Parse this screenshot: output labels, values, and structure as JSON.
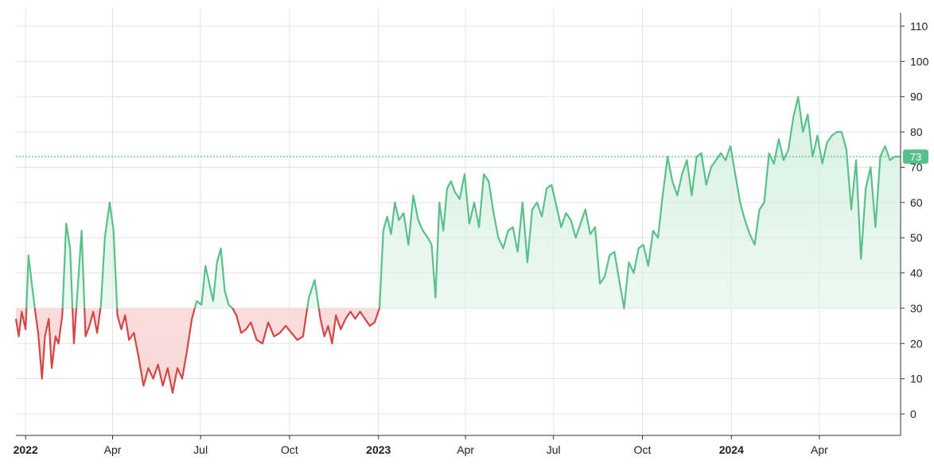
{
  "chart_data": {
    "type": "area",
    "threshold": 30,
    "colors": {
      "above": "#58c08a",
      "below": "#d64545",
      "above_fill_top": "#d8f1e3",
      "below_fill": "#f8d6d6",
      "grid": "#e3e3e3",
      "axis": "#333333",
      "current": "#58c08a"
    },
    "current_value": 73,
    "current_label": "73",
    "ylim": [
      -6,
      112
    ],
    "y_ticks": [
      0,
      10,
      20,
      30,
      40,
      50,
      60,
      70,
      80,
      90,
      100,
      110
    ],
    "y_tick_labels": [
      "0",
      "10",
      "20",
      "30",
      "40",
      "50",
      "60",
      "70",
      "80",
      "90",
      "100",
      "110"
    ],
    "xlim": [
      "2021-12-22",
      "2024-06-24"
    ],
    "x_ticks": [
      {
        "date": "2022-01-01",
        "label": "2022",
        "year": true
      },
      {
        "date": "2022-04-01",
        "label": "Apr",
        "year": false
      },
      {
        "date": "2022-07-01",
        "label": "Jul",
        "year": false
      },
      {
        "date": "2022-10-01",
        "label": "Oct",
        "year": false
      },
      {
        "date": "2023-01-01",
        "label": "2023",
        "year": true
      },
      {
        "date": "2023-04-01",
        "label": "Apr",
        "year": false
      },
      {
        "date": "2023-07-01",
        "label": "Jul",
        "year": false
      },
      {
        "date": "2023-10-01",
        "label": "Oct",
        "year": false
      },
      {
        "date": "2024-01-01",
        "label": "2024",
        "year": true
      },
      {
        "date": "2024-04-01",
        "label": "Apr",
        "year": false
      }
    ],
    "series": [
      {
        "x": [
          "2021-12-22",
          "2021-12-25",
          "2021-12-28",
          "2022-01-01",
          "2022-01-04",
          "2022-01-07",
          "2022-01-11",
          "2022-01-14",
          "2022-01-18",
          "2022-01-21",
          "2022-01-25",
          "2022-01-28",
          "2022-02-01",
          "2022-02-04",
          "2022-02-08",
          "2022-02-12",
          "2022-02-16",
          "2022-02-20",
          "2022-02-24",
          "2022-02-28",
          "2022-03-04",
          "2022-03-08",
          "2022-03-12",
          "2022-03-16",
          "2022-03-20",
          "2022-03-24",
          "2022-03-29",
          "2022-04-02",
          "2022-04-06",
          "2022-04-10",
          "2022-04-14",
          "2022-04-18",
          "2022-04-23",
          "2022-04-28",
          "2022-05-03",
          "2022-05-08",
          "2022-05-13",
          "2022-05-18",
          "2022-05-23",
          "2022-05-28",
          "2022-06-02",
          "2022-06-07",
          "2022-06-12",
          "2022-06-17",
          "2022-06-22",
          "2022-06-27",
          "2022-07-02",
          "2022-07-06",
          "2022-07-10",
          "2022-07-14",
          "2022-07-18",
          "2022-07-22",
          "2022-07-26",
          "2022-07-30",
          "2022-08-03",
          "2022-08-07",
          "2022-08-12",
          "2022-08-17",
          "2022-08-22",
          "2022-08-28",
          "2022-09-03",
          "2022-09-09",
          "2022-09-15",
          "2022-09-21",
          "2022-09-27",
          "2022-10-03",
          "2022-10-09",
          "2022-10-15",
          "2022-10-21",
          "2022-10-27",
          "2022-11-02",
          "2022-11-06",
          "2022-11-10",
          "2022-11-14",
          "2022-11-18",
          "2022-11-23",
          "2022-11-28",
          "2022-12-03",
          "2022-12-08",
          "2022-12-13",
          "2022-12-18",
          "2022-12-23",
          "2022-12-28",
          "2023-01-02",
          "2023-01-06",
          "2023-01-10",
          "2023-01-14",
          "2023-01-18",
          "2023-01-22",
          "2023-01-27",
          "2023-02-01",
          "2023-02-06",
          "2023-02-11",
          "2023-02-16",
          "2023-02-21",
          "2023-02-25",
          "2023-03-01",
          "2023-03-05",
          "2023-03-09",
          "2023-03-13",
          "2023-03-17",
          "2023-03-21",
          "2023-03-26",
          "2023-03-31",
          "2023-04-05",
          "2023-04-10",
          "2023-04-15",
          "2023-04-20",
          "2023-04-25",
          "2023-04-30",
          "2023-05-05",
          "2023-05-10",
          "2023-05-15",
          "2023-05-20",
          "2023-05-25",
          "2023-05-30",
          "2023-06-04",
          "2023-06-09",
          "2023-06-14",
          "2023-06-19",
          "2023-06-24",
          "2023-06-29",
          "2023-07-04",
          "2023-07-09",
          "2023-07-14",
          "2023-07-19",
          "2023-07-24",
          "2023-07-29",
          "2023-08-03",
          "2023-08-08",
          "2023-08-13",
          "2023-08-18",
          "2023-08-23",
          "2023-08-28",
          "2023-09-02",
          "2023-09-07",
          "2023-09-12",
          "2023-09-17",
          "2023-09-22",
          "2023-09-27",
          "2023-10-02",
          "2023-10-07",
          "2023-10-12",
          "2023-10-17",
          "2023-10-22",
          "2023-10-27",
          "2023-11-01",
          "2023-11-06",
          "2023-11-11",
          "2023-11-16",
          "2023-11-21",
          "2023-11-26",
          "2023-12-01",
          "2023-12-06",
          "2023-12-11",
          "2023-12-16",
          "2023-12-21",
          "2023-12-26",
          "2023-12-31",
          "2024-01-05",
          "2024-01-10",
          "2024-01-15",
          "2024-01-20",
          "2024-01-25",
          "2024-01-30",
          "2024-02-04",
          "2024-02-09",
          "2024-02-14",
          "2024-02-19",
          "2024-02-24",
          "2024-02-29",
          "2024-03-05",
          "2024-03-10",
          "2024-03-15",
          "2024-03-20",
          "2024-03-25",
          "2024-03-30",
          "2024-04-04",
          "2024-04-09",
          "2024-04-14",
          "2024-04-19",
          "2024-04-24",
          "2024-04-29",
          "2024-05-04",
          "2024-05-09",
          "2024-05-14",
          "2024-05-19",
          "2024-05-24",
          "2024-05-29",
          "2024-06-03",
          "2024-06-08",
          "2024-06-13",
          "2024-06-18",
          "2024-06-24"
        ],
        "y": [
          27,
          22,
          29,
          24,
          45,
          38,
          29,
          23,
          10,
          22,
          27,
          13,
          22,
          20,
          28,
          54,
          47,
          20,
          36,
          52,
          22,
          25,
          29,
          23,
          31,
          50,
          60,
          52,
          28,
          24,
          28,
          21,
          23,
          16,
          8,
          13,
          10,
          14,
          8,
          13,
          6,
          13,
          10,
          18,
          27,
          32,
          31,
          42,
          37,
          32,
          43,
          47,
          35,
          31,
          30,
          28,
          23,
          24,
          26,
          21,
          20,
          26,
          22,
          23,
          25,
          23,
          21,
          22,
          33,
          38,
          27,
          22,
          25,
          20,
          28,
          24,
          27,
          29,
          27,
          29,
          27,
          25,
          26,
          30,
          52,
          56,
          51,
          60,
          55,
          57,
          48,
          62,
          55,
          52,
          50,
          48,
          33,
          60,
          52,
          64,
          66,
          63,
          61,
          68,
          54,
          60,
          53,
          68,
          66,
          57,
          50,
          47,
          52,
          53,
          46,
          60,
          43,
          58,
          60,
          56,
          64,
          65,
          59,
          53,
          57,
          55,
          50,
          54,
          58,
          51,
          53,
          37,
          39,
          45,
          46,
          38,
          30,
          43,
          40,
          47,
          48,
          42,
          52,
          50,
          62,
          73,
          66,
          62,
          68,
          72,
          62,
          73,
          74,
          65,
          70,
          72,
          74,
          72,
          76,
          68,
          60,
          55,
          51,
          48,
          58,
          60,
          74,
          71,
          78,
          72,
          75,
          84,
          90,
          80,
          85,
          73,
          79,
          71,
          77,
          79,
          80,
          80,
          75,
          58,
          72,
          44,
          64,
          70,
          53,
          73,
          76,
          72,
          73,
          73
        ]
      }
    ]
  }
}
